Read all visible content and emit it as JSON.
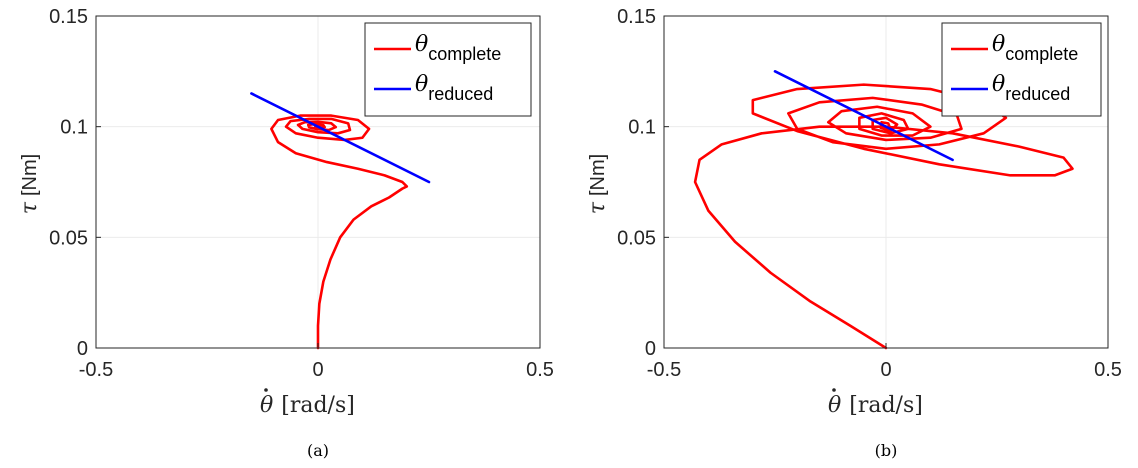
{
  "colors": {
    "complete": "#ff0000",
    "reduced": "#0000ff",
    "grid": "#ebebeb",
    "axis": "#262626"
  },
  "chart_data": [
    {
      "type": "line",
      "caption": "(a)",
      "xlim": [
        -0.5,
        0.5
      ],
      "ylim": [
        0,
        0.15
      ],
      "xticks": [
        "-0.5",
        "0",
        "0.5"
      ],
      "yticks": [
        "0",
        "0.05",
        "0.1",
        "0.15"
      ],
      "xlabel": {
        "symbol": "θ",
        "unit": "[rad/s]"
      },
      "ylabel": {
        "symbol": "τ",
        "unit": "[Nm]"
      },
      "grid": true,
      "legend": {
        "position": "top-right",
        "entries": [
          {
            "base": "θ",
            "sub": "complete"
          },
          {
            "base": "θ",
            "sub": "reduced"
          }
        ]
      },
      "series": [
        {
          "kind": "complete",
          "points": [
            [
              0.0,
              0.0
            ],
            [
              0.0,
              0.01
            ],
            [
              0.003,
              0.02
            ],
            [
              0.012,
              0.03
            ],
            [
              0.028,
              0.04
            ],
            [
              0.05,
              0.05
            ],
            [
              0.08,
              0.058
            ],
            [
              0.12,
              0.064
            ],
            [
              0.16,
              0.068
            ],
            [
              0.19,
              0.072
            ],
            [
              0.2,
              0.073
            ],
            [
              0.19,
              0.075
            ],
            [
              0.15,
              0.078
            ],
            [
              0.09,
              0.081
            ],
            [
              0.02,
              0.084
            ],
            [
              -0.05,
              0.088
            ],
            [
              -0.09,
              0.093
            ],
            [
              -0.105,
              0.099
            ],
            [
              -0.09,
              0.103
            ],
            [
              -0.04,
              0.105
            ],
            [
              0.03,
              0.105
            ],
            [
              0.09,
              0.103
            ],
            [
              0.115,
              0.099
            ],
            [
              0.1,
              0.095
            ],
            [
              0.06,
              0.094
            ],
            [
              0.0,
              0.095
            ],
            [
              -0.05,
              0.097
            ],
            [
              -0.072,
              0.1
            ],
            [
              -0.062,
              0.1025
            ],
            [
              -0.02,
              0.1035
            ],
            [
              0.03,
              0.1035
            ],
            [
              0.068,
              0.1015
            ],
            [
              0.072,
              0.0985
            ],
            [
              0.045,
              0.097
            ],
            [
              0.0,
              0.0975
            ],
            [
              -0.035,
              0.099
            ],
            [
              -0.045,
              0.1008
            ],
            [
              -0.03,
              0.102
            ],
            [
              0.0,
              0.1022
            ],
            [
              0.03,
              0.1015
            ],
            [
              0.04,
              0.0998
            ],
            [
              0.025,
              0.0985
            ],
            [
              0.0,
              0.0988
            ],
            [
              -0.02,
              0.0997
            ],
            [
              -0.022,
              0.1008
            ],
            [
              -0.005,
              0.1012
            ],
            [
              0.012,
              0.1007
            ],
            [
              0.015,
              0.0998
            ],
            [
              0.005,
              0.0995
            ],
            [
              -0.006,
              0.1
            ],
            [
              0.0,
              0.1005
            ],
            [
              0.005,
              0.1
            ]
          ]
        },
        {
          "kind": "reduced",
          "points": [
            [
              -0.15,
              0.115
            ],
            [
              0.25,
              0.075
            ]
          ]
        }
      ]
    },
    {
      "type": "line",
      "caption": "(b)",
      "xlim": [
        -0.5,
        0.5
      ],
      "ylim": [
        0,
        0.15
      ],
      "xticks": [
        "-0.5",
        "0",
        "0.5"
      ],
      "yticks": [
        "0",
        "0.05",
        "0.1",
        "0.15"
      ],
      "xlabel": {
        "symbol": "θ",
        "unit": "[rad/s]"
      },
      "ylabel": {
        "symbol": "τ",
        "unit": "[Nm]"
      },
      "grid": true,
      "legend": {
        "position": "top-right",
        "entries": [
          {
            "base": "θ",
            "sub": "complete"
          },
          {
            "base": "θ",
            "sub": "reduced"
          }
        ]
      },
      "series": [
        {
          "kind": "complete",
          "points": [
            [
              0.0,
              0.0
            ],
            [
              -0.08,
              0.01
            ],
            [
              -0.17,
              0.021
            ],
            [
              -0.26,
              0.034
            ],
            [
              -0.34,
              0.048
            ],
            [
              -0.4,
              0.062
            ],
            [
              -0.43,
              0.075
            ],
            [
              -0.42,
              0.085
            ],
            [
              -0.37,
              0.092
            ],
            [
              -0.28,
              0.097
            ],
            [
              -0.15,
              0.1
            ],
            [
              0.0,
              0.1
            ],
            [
              0.15,
              0.097
            ],
            [
              0.3,
              0.091
            ],
            [
              0.4,
              0.086
            ],
            [
              0.42,
              0.081
            ],
            [
              0.38,
              0.078
            ],
            [
              0.28,
              0.078
            ],
            [
              0.12,
              0.083
            ],
            [
              -0.05,
              0.09
            ],
            [
              -0.2,
              0.098
            ],
            [
              -0.3,
              0.106
            ],
            [
              -0.3,
              0.112
            ],
            [
              -0.2,
              0.117
            ],
            [
              -0.05,
              0.119
            ],
            [
              0.1,
              0.117
            ],
            [
              0.22,
              0.111
            ],
            [
              0.27,
              0.104
            ],
            [
              0.22,
              0.097
            ],
            [
              0.12,
              0.092
            ],
            [
              0.0,
              0.09
            ],
            [
              -0.12,
              0.093
            ],
            [
              -0.2,
              0.099
            ],
            [
              -0.22,
              0.106
            ],
            [
              -0.15,
              0.111
            ],
            [
              -0.03,
              0.113
            ],
            [
              0.08,
              0.11
            ],
            [
              0.16,
              0.105
            ],
            [
              0.17,
              0.099
            ],
            [
              0.1,
              0.095
            ],
            [
              0.0,
              0.094
            ],
            [
              -0.09,
              0.097
            ],
            [
              -0.13,
              0.102
            ],
            [
              -0.1,
              0.107
            ],
            [
              -0.02,
              0.109
            ],
            [
              0.06,
              0.106
            ],
            [
              0.1,
              0.1
            ],
            [
              0.06,
              0.096
            ],
            [
              -0.01,
              0.096
            ],
            [
              -0.06,
              0.099
            ],
            [
              -0.06,
              0.104
            ],
            [
              -0.01,
              0.106
            ],
            [
              0.04,
              0.103
            ],
            [
              0.05,
              0.099
            ],
            [
              0.01,
              0.097
            ],
            [
              -0.03,
              0.099
            ],
            [
              -0.03,
              0.103
            ],
            [
              0.0,
              0.104
            ],
            [
              0.025,
              0.101
            ],
            [
              0.01,
              0.098
            ],
            [
              -0.012,
              0.0995
            ],
            [
              -0.01,
              0.102
            ],
            [
              0.005,
              0.1015
            ],
            [
              0.008,
              0.1
            ],
            [
              0.0,
              0.0995
            ],
            [
              0.0,
              0.1
            ]
          ]
        },
        {
          "kind": "reduced",
          "points": [
            [
              -0.25,
              0.125
            ],
            [
              0.15,
              0.085
            ]
          ]
        }
      ]
    }
  ]
}
